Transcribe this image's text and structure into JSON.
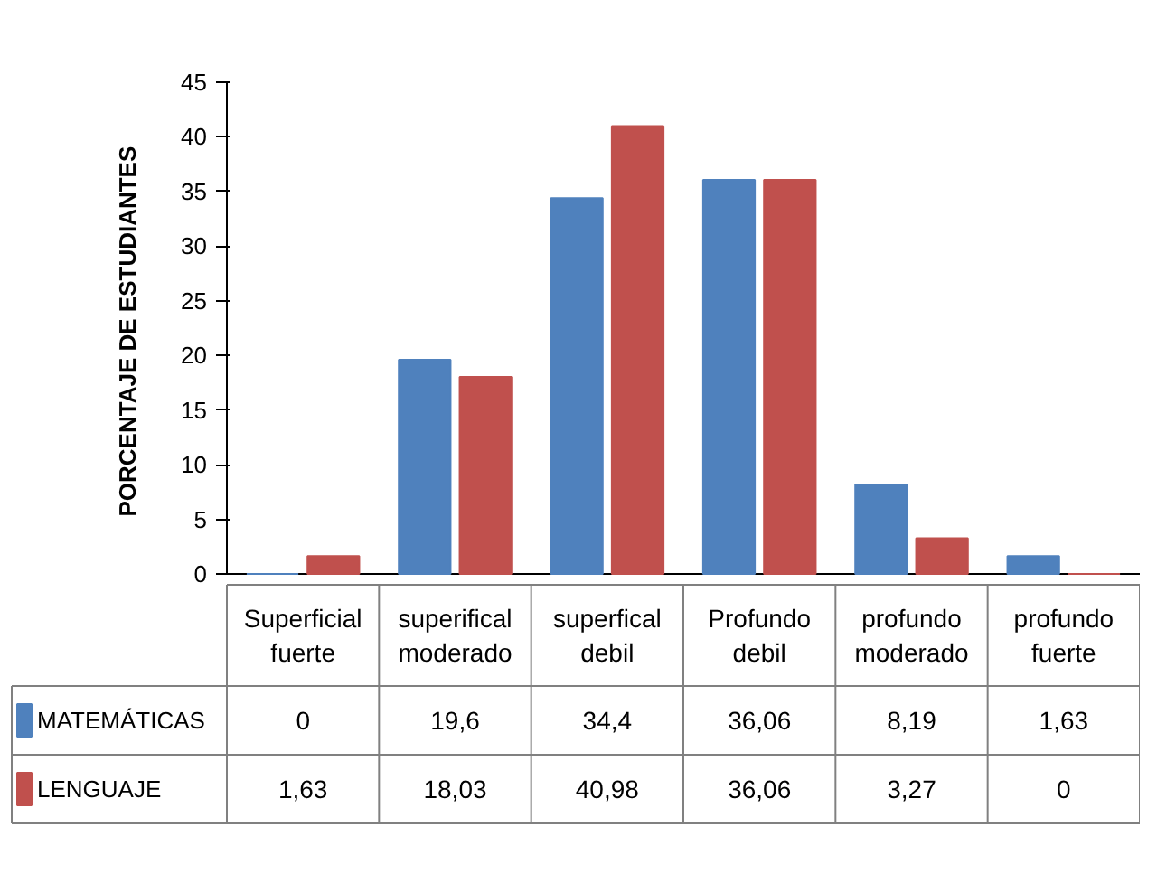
{
  "chart_data": {
    "type": "bar",
    "ylabel": "PORCENTAJE  DE ESTUDIANTES",
    "categories": [
      "Superficial fuerte",
      "superifical moderado",
      "superfical debil",
      "Profundo debil",
      "profundo moderado",
      "profundo fuerte"
    ],
    "series": [
      {
        "name": "MATEMÁTICAS",
        "color": "#4f81bd",
        "values": [
          0,
          19.6,
          34.4,
          36.06,
          8.19,
          1.63
        ],
        "value_labels": [
          "0",
          "19,6",
          "34,4",
          "36,06",
          "8,19",
          "1,63"
        ]
      },
      {
        "name": "LENGUAJE",
        "color": "#c0504d",
        "values": [
          1.63,
          18.03,
          40.98,
          36.06,
          3.27,
          0
        ],
        "value_labels": [
          "1,63",
          "18,03",
          "40,98",
          "36,06",
          "3,27",
          "0"
        ]
      }
    ],
    "ylim": [
      0,
      45
    ],
    "yticks": [
      0,
      5,
      10,
      15,
      20,
      25,
      30,
      35,
      40,
      45
    ],
    "grid": false,
    "legend": "bottom"
  }
}
